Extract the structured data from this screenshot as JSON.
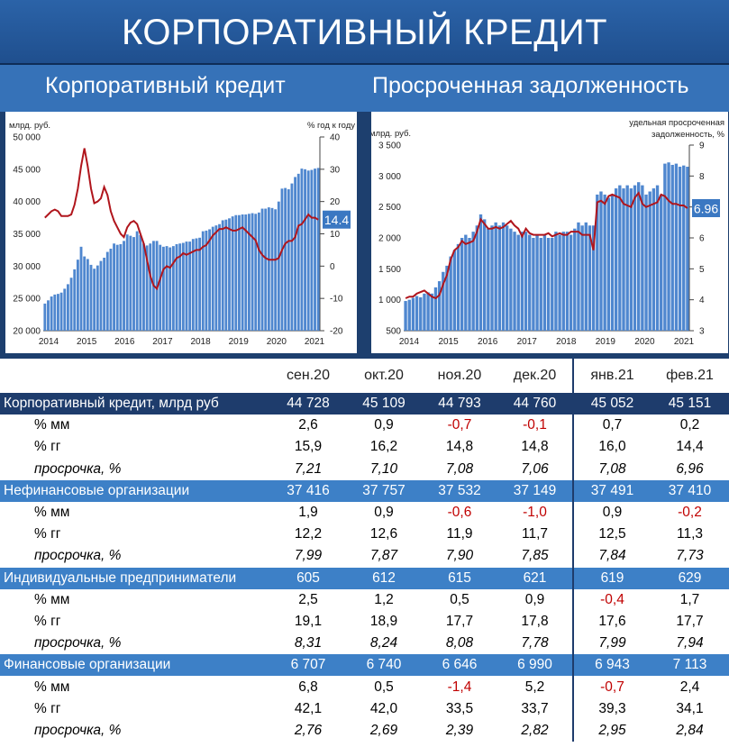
{
  "header": {
    "title": "КОРПОРАТИВНЫЙ КРЕДИТ",
    "left_subtitle": "Корпоративный кредит",
    "right_subtitle": "Просроченная задолженность"
  },
  "chart_data": [
    {
      "type": "bar",
      "left_unit": "млрд. руб.",
      "right_unit": "% год к году",
      "x_ticks": [
        "2014",
        "2015",
        "2016",
        "2017",
        "2018",
        "2019",
        "2020",
        "2021"
      ],
      "y_left_ticks": [
        "50 000",
        "45 000",
        "40 000",
        "35 000",
        "30 000",
        "25 000",
        "20 000"
      ],
      "y_right_ticks": [
        "40",
        "30",
        "20",
        "10",
        "0",
        "-10",
        "-20"
      ],
      "ylim_left": [
        20000,
        50000
      ],
      "ylim_right": [
        -20,
        40
      ],
      "bar_color": "#4f87cf",
      "line_color": "#b0151c",
      "last_value_label": "14.4",
      "bars": [
        24200,
        24700,
        25300,
        25600,
        25700,
        25900,
        26500,
        27200,
        28200,
        29500,
        31000,
        33000,
        31500,
        31100,
        30200,
        29600,
        30100,
        30800,
        31300,
        32200,
        32700,
        33500,
        33300,
        33400,
        33900,
        34900,
        34700,
        34500,
        35400,
        34800,
        33500,
        33200,
        33500,
        33900,
        33900,
        33300,
        33000,
        33100,
        32900,
        33100,
        33400,
        33500,
        33600,
        33800,
        33800,
        34200,
        34300,
        34400,
        35400,
        35500,
        35700,
        36100,
        36300,
        36500,
        37100,
        37200,
        37400,
        37700,
        37900,
        37900,
        38000,
        38000,
        38100,
        38200,
        38100,
        38300,
        38900,
        38900,
        39100,
        39000,
        38800,
        40000,
        42000,
        42100,
        41900,
        42800,
        43800,
        44300,
        45100,
        45000,
        44800,
        44900,
        45100,
        45200
      ],
      "line": [
        15,
        16,
        17,
        17.5,
        17,
        15.5,
        15.5,
        15.5,
        16,
        19,
        24,
        31,
        36.5,
        31,
        24,
        19.5,
        20,
        21,
        24.5,
        22,
        17,
        14,
        12,
        10,
        9,
        12,
        13.5,
        14,
        13,
        10,
        7,
        2,
        -3,
        -6,
        -7,
        -4,
        -1,
        0,
        -0.5,
        1,
        2.5,
        3,
        4,
        3.5,
        4,
        4.5,
        5,
        5,
        6,
        6.5,
        8,
        9.5,
        10.5,
        11.5,
        11.5,
        12,
        11.5,
        11,
        11,
        11.5,
        12,
        11,
        10,
        9,
        8,
        5,
        3.5,
        2.5,
        2,
        2,
        2,
        2.5,
        5,
        7,
        7.8,
        7.8,
        9,
        12.5,
        13,
        14.5,
        16,
        15,
        15,
        14.4
      ]
    },
    {
      "type": "bar",
      "left_unit": "млрд. руб.",
      "right_unit": "удельная просроченная задолженность, %",
      "x_ticks": [
        "2014",
        "2015",
        "2016",
        "2017",
        "2018",
        "2019",
        "2020",
        "2021"
      ],
      "y_left_ticks": [
        "3 500",
        "3 000",
        "2 500",
        "2 000",
        "1 500",
        "1 000",
        "500"
      ],
      "y_right_ticks": [
        "9",
        "8",
        "7",
        "6",
        "5",
        "4",
        "3"
      ],
      "ylim_left": [
        500,
        3500
      ],
      "ylim_right": [
        3,
        9
      ],
      "bar_color": "#4f87cf",
      "line_color": "#b0151c",
      "last_value_label": "6.96",
      "bars": [
        980,
        1000,
        1030,
        1060,
        1040,
        1100,
        1120,
        1100,
        1200,
        1300,
        1450,
        1550,
        1700,
        1800,
        1900,
        2000,
        2050,
        2000,
        2100,
        2200,
        2380,
        2300,
        2150,
        2200,
        2250,
        2200,
        2250,
        2200,
        2150,
        2100,
        2050,
        2100,
        2100,
        2050,
        2000,
        2050,
        2000,
        2050,
        2000,
        2000,
        2100,
        2050,
        2100,
        2100,
        2050,
        2150,
        2250,
        2200,
        2250,
        2200,
        2200,
        2700,
        2750,
        2700,
        2650,
        2700,
        2800,
        2850,
        2800,
        2850,
        2800,
        2850,
        2900,
        2850,
        2700,
        2750,
        2800,
        2850,
        2700,
        3200,
        3220,
        3180,
        3200,
        3150,
        3170,
        3150
      ],
      "line": [
        4.05,
        4.1,
        4.1,
        4.2,
        4.25,
        4.3,
        4.2,
        4.1,
        4.05,
        4.15,
        4.5,
        4.8,
        5.3,
        5.6,
        5.7,
        5.9,
        5.8,
        5.85,
        5.9,
        6.2,
        6.6,
        6.45,
        6.3,
        6.3,
        6.35,
        6.3,
        6.35,
        6.45,
        6.55,
        6.4,
        6.3,
        6.05,
        6.3,
        6.15,
        6.1,
        6.1,
        6.1,
        6.1,
        6.15,
        6.05,
        6.1,
        6.15,
        6.1,
        6.1,
        6.2,
        6.2,
        6.2,
        6.1,
        6.1,
        6.1,
        5.6,
        7.15,
        7.2,
        7.1,
        7.35,
        7.4,
        7.35,
        7.3,
        7.1,
        7.05,
        7.0,
        7.3,
        7.45,
        7.1,
        7.0,
        7.05,
        7.1,
        7.15,
        7.4,
        7.35,
        7.2,
        7.1,
        7.1,
        7.05,
        7.05,
        6.96
      ]
    }
  ],
  "table": {
    "columns": [
      "сен.20",
      "окт.20",
      "ноя.20",
      "дек.20",
      "янв.21",
      "фев.21"
    ],
    "rows": [
      {
        "kind": "main",
        "label": "Корпоративный кредит, млрд руб",
        "cells": [
          "44 728",
          "45 109",
          "44 793",
          "44 760",
          "45 052",
          "45 151"
        ],
        "neg": [
          false,
          false,
          false,
          false,
          false,
          false
        ]
      },
      {
        "kind": "sub",
        "label": "% мм",
        "cells": [
          "2,6",
          "0,9",
          "-0,7",
          "-0,1",
          "0,7",
          "0,2"
        ],
        "neg": [
          false,
          false,
          true,
          true,
          false,
          false
        ]
      },
      {
        "kind": "sub",
        "label": "% гг",
        "cells": [
          "15,9",
          "16,2",
          "14,8",
          "14,8",
          "16,0",
          "14,4"
        ],
        "neg": [
          false,
          false,
          false,
          false,
          false,
          false
        ]
      },
      {
        "kind": "subit",
        "label": "просрочка, %",
        "cells": [
          "7,21",
          "7,10",
          "7,08",
          "7,06",
          "7,08",
          "6,96"
        ],
        "neg": [
          false,
          false,
          false,
          false,
          false,
          false
        ]
      },
      {
        "kind": "sec",
        "label": "Нефинансовые организации",
        "cells": [
          "37 416",
          "37 757",
          "37 532",
          "37 149",
          "37 491",
          "37 410"
        ],
        "neg": [
          false,
          false,
          false,
          false,
          false,
          false
        ]
      },
      {
        "kind": "sub",
        "label": "% мм",
        "cells": [
          "1,9",
          "0,9",
          "-0,6",
          "-1,0",
          "0,9",
          "-0,2"
        ],
        "neg": [
          false,
          false,
          true,
          true,
          false,
          true
        ]
      },
      {
        "kind": "sub",
        "label": "% гг",
        "cells": [
          "12,2",
          "12,6",
          "11,9",
          "11,7",
          "12,5",
          "11,3"
        ],
        "neg": [
          false,
          false,
          false,
          false,
          false,
          false
        ]
      },
      {
        "kind": "subit",
        "label": "просрочка, %",
        "cells": [
          "7,99",
          "7,87",
          "7,90",
          "7,85",
          "7,84",
          "7,73"
        ],
        "neg": [
          false,
          false,
          false,
          false,
          false,
          false
        ]
      },
      {
        "kind": "sec",
        "label": "Индивидуальные предприниматели",
        "cells": [
          "605",
          "612",
          "615",
          "621",
          "619",
          "629"
        ],
        "neg": [
          false,
          false,
          false,
          false,
          false,
          false
        ]
      },
      {
        "kind": "sub",
        "label": "% мм",
        "cells": [
          "2,5",
          "1,2",
          "0,5",
          "0,9",
          "-0,4",
          "1,7"
        ],
        "neg": [
          false,
          false,
          false,
          false,
          true,
          false
        ]
      },
      {
        "kind": "sub",
        "label": "% гг",
        "cells": [
          "19,1",
          "18,9",
          "17,7",
          "17,8",
          "17,6",
          "17,7"
        ],
        "neg": [
          false,
          false,
          false,
          false,
          false,
          false
        ]
      },
      {
        "kind": "subit",
        "label": "просрочка, %",
        "cells": [
          "8,31",
          "8,24",
          "8,08",
          "7,78",
          "7,99",
          "7,94"
        ],
        "neg": [
          false,
          false,
          false,
          false,
          false,
          false
        ]
      },
      {
        "kind": "sec",
        "label": "Финансовые организации",
        "cells": [
          "6 707",
          "6 740",
          "6 646",
          "6 990",
          "6 943",
          "7 113"
        ],
        "neg": [
          false,
          false,
          false,
          false,
          false,
          false
        ]
      },
      {
        "kind": "sub",
        "label": "% мм",
        "cells": [
          "6,8",
          "0,5",
          "-1,4",
          "5,2",
          "-0,7",
          "2,4"
        ],
        "neg": [
          false,
          false,
          true,
          false,
          true,
          false
        ]
      },
      {
        "kind": "sub",
        "label": "% гг",
        "cells": [
          "42,1",
          "42,0",
          "33,5",
          "33,7",
          "39,3",
          "34,1"
        ],
        "neg": [
          false,
          false,
          false,
          false,
          false,
          false
        ]
      },
      {
        "kind": "subit",
        "label": "просрочка, %",
        "cells": [
          "2,76",
          "2,69",
          "2,39",
          "2,82",
          "2,95",
          "2,84"
        ],
        "neg": [
          false,
          false,
          false,
          false,
          false,
          false
        ]
      }
    ]
  }
}
